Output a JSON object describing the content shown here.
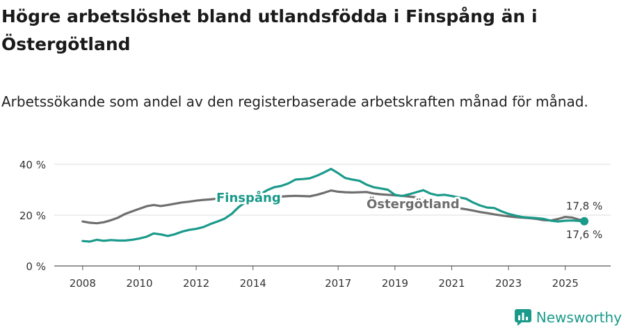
{
  "header": {
    "title": "Högre arbetslöshet bland utlandsfödda i Finspång än i Östergötland",
    "subtitle": "Arbetssökande som andel av den registerbaserade arbetskraften månad för månad."
  },
  "brand": {
    "name": "Newsworthy",
    "color": "#1a9a8a"
  },
  "chart_data": {
    "type": "line",
    "title": "Högre arbetslöshet bland utlandsfödda i Finspång än i Östergötland",
    "subtitle": "Arbetssökande som andel av den registerbaserade arbetskraften månad för månad.",
    "xlabel": "",
    "ylabel": "",
    "x_range": [
      2007.0,
      2026.6
    ],
    "ylim": [
      0,
      40
    ],
    "y_ticks": [
      0,
      20,
      40
    ],
    "y_tick_labels": [
      "0 %",
      "20 %",
      "40 %"
    ],
    "x_ticks": [
      2008,
      2010,
      2012,
      2014,
      2017,
      2019,
      2021,
      2023,
      2025
    ],
    "x_tick_labels": [
      "2008",
      "2010",
      "2012",
      "2014",
      "2017",
      "2019",
      "2021",
      "2023",
      "2025"
    ],
    "grid": true,
    "legend": "inline labels",
    "series": [
      {
        "name": "Finspång",
        "color": "#1a9a8a",
        "x": [
          2008.0,
          2008.25,
          2008.5,
          2008.75,
          2009.0,
          2009.25,
          2009.5,
          2009.75,
          2010.0,
          2010.25,
          2010.5,
          2010.75,
          2011.0,
          2011.25,
          2011.5,
          2011.75,
          2012.0,
          2012.25,
          2012.5,
          2012.75,
          2013.0,
          2013.25,
          2013.5,
          2013.75,
          2014.0,
          2014.25,
          2014.5,
          2014.75,
          2015.0,
          2015.25,
          2015.5,
          2015.75,
          2016.0,
          2016.25,
          2016.5,
          2016.75,
          2017.0,
          2017.25,
          2017.5,
          2017.75,
          2018.0,
          2018.25,
          2018.5,
          2018.75,
          2019.0,
          2019.25,
          2019.5,
          2019.75,
          2020.0,
          2020.25,
          2020.5,
          2020.75,
          2021.0,
          2021.25,
          2021.5,
          2021.75,
          2022.0,
          2022.25,
          2022.5,
          2022.75,
          2023.0,
          2023.25,
          2023.5,
          2023.75,
          2024.0,
          2024.25,
          2024.5,
          2024.75,
          2025.0,
          2025.25,
          2025.5,
          2025.67
        ],
        "values": [
          9.8,
          9.6,
          10.3,
          9.9,
          10.2,
          10.0,
          10.0,
          10.3,
          10.8,
          11.5,
          12.8,
          12.4,
          11.8,
          12.5,
          13.5,
          14.2,
          14.6,
          15.3,
          16.5,
          17.5,
          18.6,
          20.5,
          23.2,
          25.2,
          26.8,
          28.2,
          29.8,
          31.0,
          31.5,
          32.5,
          34.0,
          34.2,
          34.5,
          35.5,
          36.8,
          38.2,
          36.5,
          34.6,
          34.0,
          33.5,
          32.0,
          31.0,
          30.5,
          30.0,
          28.0,
          27.5,
          28.2,
          29.0,
          29.8,
          28.5,
          27.8,
          28.0,
          27.5,
          27.0,
          26.5,
          25.0,
          23.8,
          23.0,
          22.8,
          21.5,
          20.5,
          19.8,
          19.2,
          19.0,
          18.8,
          18.5,
          17.8,
          17.5,
          17.8,
          17.9,
          17.7,
          17.6
        ],
        "end_label": "17,6 %",
        "inline_label": "Finspång"
      },
      {
        "name": "Östergötland",
        "color": "#6e6e6e",
        "x": [
          2008.0,
          2008.25,
          2008.5,
          2008.75,
          2009.0,
          2009.25,
          2009.5,
          2009.75,
          2010.0,
          2010.25,
          2010.5,
          2010.75,
          2011.0,
          2011.25,
          2011.5,
          2011.75,
          2012.0,
          2012.25,
          2012.5,
          2012.75,
          2013.0,
          2013.25,
          2013.5,
          2013.75,
          2014.0,
          2014.25,
          2014.5,
          2014.75,
          2015.0,
          2015.25,
          2015.5,
          2015.75,
          2016.0,
          2016.25,
          2016.5,
          2016.75,
          2017.0,
          2017.25,
          2017.5,
          2017.75,
          2018.0,
          2018.25,
          2018.5,
          2018.75,
          2019.0,
          2019.25,
          2019.5,
          2019.75,
          2020.0,
          2020.25,
          2020.5,
          2020.75,
          2021.0,
          2021.25,
          2021.5,
          2021.75,
          2022.0,
          2022.25,
          2022.5,
          2022.75,
          2023.0,
          2023.25,
          2023.5,
          2023.75,
          2024.0,
          2024.25,
          2024.5,
          2024.75,
          2025.0,
          2025.25,
          2025.5,
          2025.67
        ],
        "values": [
          17.5,
          17.0,
          16.8,
          17.2,
          18.0,
          19.0,
          20.5,
          21.5,
          22.5,
          23.5,
          24.0,
          23.6,
          24.0,
          24.5,
          25.0,
          25.3,
          25.7,
          26.0,
          26.2,
          26.5,
          26.6,
          26.7,
          26.8,
          26.8,
          27.0,
          27.0,
          27.1,
          27.2,
          27.3,
          27.5,
          27.6,
          27.5,
          27.4,
          28.0,
          28.8,
          29.7,
          29.2,
          29.0,
          28.9,
          29.0,
          29.1,
          28.5,
          28.2,
          28.0,
          27.8,
          27.6,
          27.3,
          27.0,
          26.5,
          25.8,
          25.0,
          24.2,
          23.3,
          22.7,
          22.3,
          21.8,
          21.2,
          20.8,
          20.3,
          19.9,
          19.5,
          19.2,
          19.0,
          18.8,
          18.5,
          18.0,
          17.9,
          18.5,
          19.3,
          19.0,
          18.2,
          17.8
        ],
        "end_label": "17,8 %",
        "inline_label": "Östergötland"
      }
    ]
  }
}
